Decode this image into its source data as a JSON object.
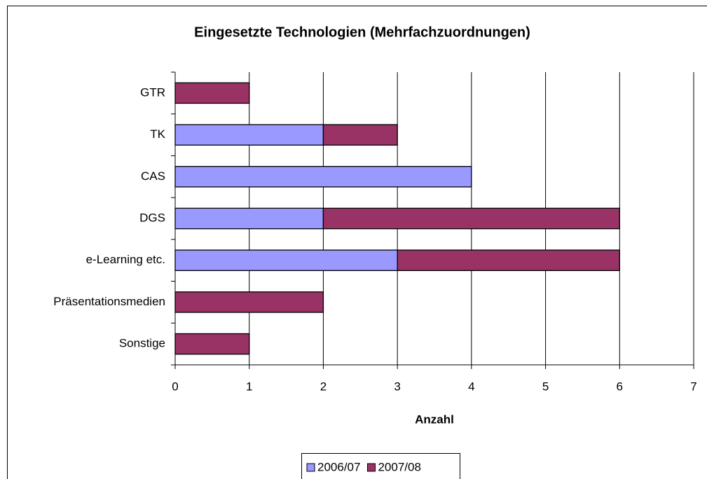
{
  "chart_data": {
    "type": "stacked_barh",
    "title": "Eingesetzte Technologien (Mehrfachzuordnungen)",
    "categories": [
      "GTR",
      "TK",
      "CAS",
      "DGS",
      "e-Learning etc.",
      "Präsentationsmedien",
      "Sonstige"
    ],
    "series": [
      {
        "name": "2006/07",
        "color": "#9999ff",
        "values": [
          0,
          2,
          4,
          2,
          3,
          0,
          0
        ]
      },
      {
        "name": "2007/08",
        "color": "#993366",
        "values": [
          1,
          1,
          0,
          4,
          3,
          2,
          1
        ]
      }
    ],
    "xlim": [
      0,
      7
    ],
    "xticks": [
      0,
      1,
      2,
      3,
      4,
      5,
      6,
      7
    ],
    "xlabel": "Anzahl",
    "grid": true,
    "legend": "bottom"
  }
}
